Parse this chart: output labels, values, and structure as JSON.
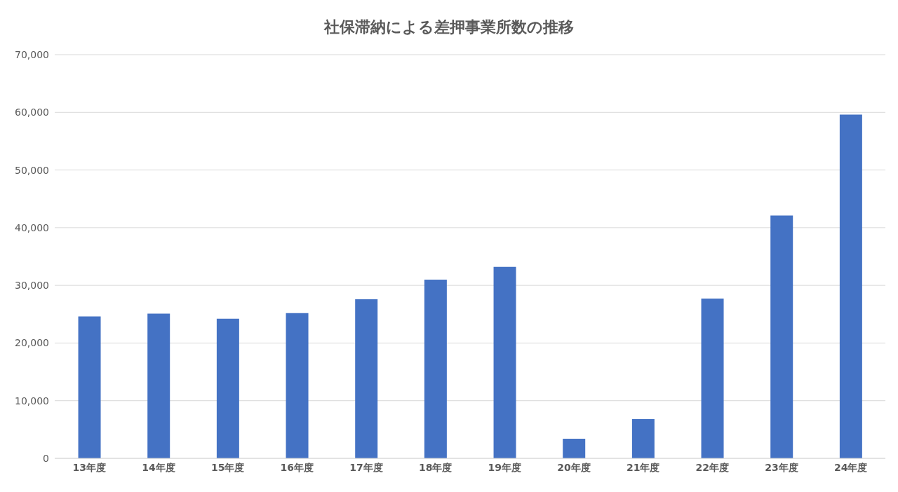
{
  "chart_data": {
    "type": "bar",
    "title": "社保滞納による差押事業所数の推移",
    "categories": [
      "13年度",
      "14年度",
      "15年度",
      "16年度",
      "17年度",
      "18年度",
      "19年度",
      "20年度",
      "21年度",
      "22年度",
      "23年度",
      "24年度"
    ],
    "values": [
      24600,
      25100,
      24200,
      25200,
      27600,
      31000,
      33200,
      3400,
      6800,
      27700,
      42100,
      59600
    ],
    "color": "#4472c4",
    "ylim": [
      0,
      70000
    ],
    "yticks": [
      0,
      {
        "value": 10000,
        "label": "10,000"
      },
      {
        "value": 20000,
        "label": "20,000"
      },
      {
        "value": 30000,
        "label": "30,000"
      },
      {
        "value": 40000,
        "label": "40,000"
      },
      {
        "value": 50000,
        "label": "50,000"
      },
      {
        "value": 60000,
        "label": "60,000"
      },
      {
        "value": 70000,
        "label": "70,000"
      }
    ],
    "grid": "y",
    "legend": false
  }
}
